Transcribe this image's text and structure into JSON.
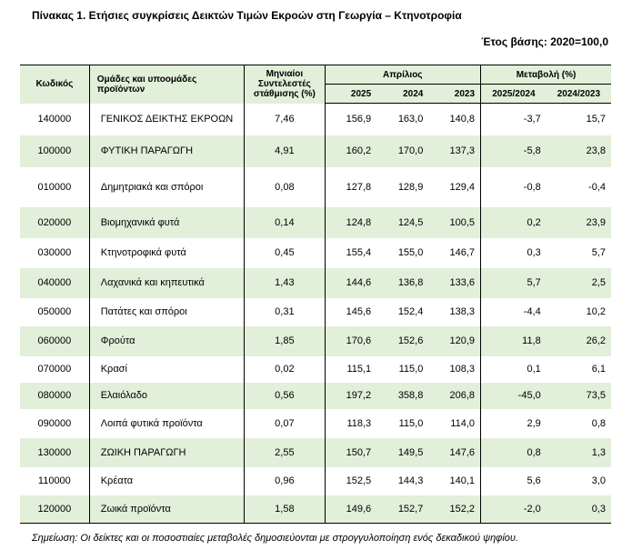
{
  "title": "Πίνακας 1. Ετήσιες συγκρίσεις Δεικτών Τιμών Εκροών στη Γεωργία – Κτηνοτροφία",
  "base_year": "Έτος βάσης: 2020=100,0",
  "headers": {
    "code": "Κωδικός",
    "group": "Ομάδες και υποομάδες προϊόντων",
    "weights": "Μηνιαίοι Συντελεστές στάθμισης (%)",
    "april": "Απρίλιος",
    "change": "Μεταβολή (%)",
    "y2025": "2025",
    "y2024": "2024",
    "y2023": "2023",
    "c1": "2025/2024",
    "c2": "2024/2023"
  },
  "rows": [
    {
      "code": "140000",
      "name": "ΓΕΝΙΚΟΣ ΔΕΙΚΤΗΣ ΕΚΡΟΩΝ",
      "weight": "7,46",
      "v2025": "156,9",
      "v2024": "163,0",
      "v2023": "140,8",
      "c1": "-3,7",
      "c2": "15,7"
    },
    {
      "code": "100000",
      "name": "ΦΥΤΙΚΗ ΠΑΡΑΓΩΓΗ",
      "weight": "4,91",
      "v2025": "160,2",
      "v2024": "170,0",
      "v2023": "137,3",
      "c1": "-5,8",
      "c2": "23,8"
    },
    {
      "code": "010000",
      "name": "Δημητριακά και σπόροι",
      "weight": "0,08",
      "v2025": "127,8",
      "v2024": "128,9",
      "v2023": "129,4",
      "c1": "-0,8",
      "c2": "-0,4"
    },
    {
      "code": "020000",
      "name": "Βιομηχανικά φυτά",
      "weight": "0,14",
      "v2025": "124,8",
      "v2024": "124,5",
      "v2023": "100,5",
      "c1": "0,2",
      "c2": "23,9"
    },
    {
      "code": "030000",
      "name": "Κτηνοτροφικά φυτά",
      "weight": "0,45",
      "v2025": "155,4",
      "v2024": "155,0",
      "v2023": "146,7",
      "c1": "0,3",
      "c2": "5,7"
    },
    {
      "code": "040000",
      "name": "Λαχανικά και κηπευτικά",
      "weight": "1,43",
      "v2025": "144,6",
      "v2024": "136,8",
      "v2023": "133,6",
      "c1": "5,7",
      "c2": "2,5"
    },
    {
      "code": "050000",
      "name": "Πατάτες και σπόροι",
      "weight": "0,31",
      "v2025": "145,6",
      "v2024": "152,4",
      "v2023": "138,3",
      "c1": "-4,4",
      "c2": "10,2"
    },
    {
      "code": "060000",
      "name": "Φρούτα",
      "weight": "1,85",
      "v2025": "170,6",
      "v2024": "152,6",
      "v2023": "120,9",
      "c1": "11,8",
      "c2": "26,2"
    },
    {
      "code": "070000",
      "name": "Κρασί",
      "weight": "0,02",
      "v2025": "115,1",
      "v2024": "115,0",
      "v2023": "108,3",
      "c1": "0,1",
      "c2": "6,1"
    },
    {
      "code": "080000",
      "name": "Ελαιόλαδο",
      "weight": "0,56",
      "v2025": "197,2",
      "v2024": "358,8",
      "v2023": "206,8",
      "c1": "-45,0",
      "c2": "73,5"
    },
    {
      "code": "090000",
      "name": "Λοιπά φυτικά προϊόντα",
      "weight": "0,07",
      "v2025": "118,3",
      "v2024": "115,0",
      "v2023": "114,0",
      "c1": "2,9",
      "c2": "0,8"
    },
    {
      "code": "130000",
      "name": "ΖΩΙΚΗ ΠΑΡΑΓΩΓΗ",
      "weight": "2,55",
      "v2025": "150,7",
      "v2024": "149,5",
      "v2023": "147,6",
      "c1": "0,8",
      "c2": "1,3"
    },
    {
      "code": "110000",
      "name": "Κρέατα",
      "weight": "0,96",
      "v2025": "152,5",
      "v2024": "144,3",
      "v2023": "140,1",
      "c1": "5,6",
      "c2": "3,0"
    },
    {
      "code": "120000",
      "name": "Ζωικά προϊόντα",
      "weight": "1,58",
      "v2025": "149,6",
      "v2024": "152,7",
      "v2023": "152,2",
      "c1": "-2,0",
      "c2": "0,3"
    }
  ],
  "note": "Σημείωση: Οι δείκτες και οι ποσοστιαίες μεταβολές δημοσιεύονται με στρογγυλοποίηση ενός δεκαδικού ψηφίου.",
  "colors": {
    "header_bg": "#e2efd9",
    "stripe_bg": "#e2efd9"
  }
}
